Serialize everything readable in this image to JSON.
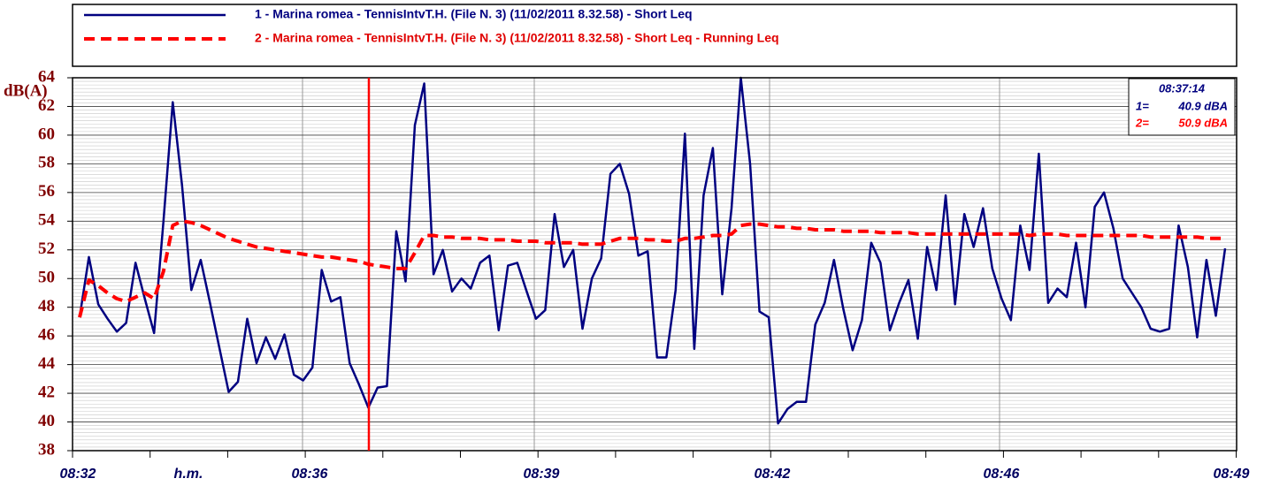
{
  "chart_data": {
    "type": "line",
    "y_label": "dB(A)",
    "ylim": [
      38,
      64
    ],
    "yticks": [
      38,
      40,
      42,
      44,
      46,
      48,
      50,
      52,
      54,
      56,
      58,
      60,
      62,
      64
    ],
    "x_tick_labels": [
      "08:32",
      "h.m.",
      "08:36",
      "08:39",
      "08:42",
      "08:46",
      "08:49"
    ],
    "grid": true,
    "series": [
      {
        "name": "1 - Marina romea - TennisIntvT.H. (File N. 3) (11/02/2011 8.32.58) - Short Leq",
        "color": "#000080",
        "style": "solid",
        "values": [
          47.3,
          51.5,
          48.2,
          47.2,
          46.3,
          46.9,
          51.1,
          48.6,
          46.2,
          54,
          62.3,
          56.5,
          49.2,
          51.3,
          48.3,
          45.2,
          42.1,
          42.8,
          47.2,
          44.1,
          45.9,
          44.4,
          46.1,
          43.3,
          42.9,
          43.8,
          50.6,
          48.4,
          48.7,
          44.1,
          42.6,
          41,
          42.4,
          42.5,
          53.3,
          49.8,
          60.7,
          63.6,
          50.3,
          52,
          49.1,
          50,
          49.3,
          51.1,
          51.6,
          46.4,
          50.9,
          51.1,
          49.1,
          47.2,
          47.8,
          54.5,
          50.8,
          52,
          46.5,
          50,
          51.4,
          57.3,
          58,
          55.9,
          51.6,
          51.9,
          44.5,
          44.5,
          49.2,
          60.1,
          45.1,
          55.8,
          59.1,
          48.9,
          54.9,
          64,
          58,
          47.7,
          47.3,
          39.9,
          40.9,
          41.4,
          41.4,
          46.8,
          48.3,
          51.3,
          47.9,
          45,
          47.1,
          52.5,
          51.1,
          46.4,
          48.3,
          49.9,
          45.8,
          52.2,
          49.2,
          55.8,
          48.2,
          54.5,
          52.2,
          54.9,
          50.7,
          48.6,
          47.1,
          53.7,
          50.6,
          58.7,
          48.3,
          49.3,
          48.7,
          52.5,
          48,
          55,
          56,
          53.5,
          50,
          49,
          48,
          46.5,
          46.3,
          46.5,
          53.7,
          50.8,
          45.9,
          51.3,
          47.4,
          52.1
        ]
      },
      {
        "name": "2 - Marina romea - TennisIntvT.H. (File N. 3) (11/02/2011 8.32.58) - Short Leq - Running Leq",
        "color": "#ff0000",
        "style": "dashed",
        "values": [
          47.3,
          49.9,
          49.5,
          49,
          48.6,
          48.4,
          48.7,
          49,
          48.6,
          50.5,
          53.7,
          54,
          53.9,
          53.7,
          53.4,
          53.1,
          52.8,
          52.6,
          52.4,
          52.2,
          52.1,
          52,
          51.9,
          51.8,
          51.7,
          51.6,
          51.5,
          51.5,
          51.4,
          51.3,
          51.2,
          51,
          50.9,
          50.8,
          50.7,
          50.7,
          51.8,
          53,
          53,
          52.9,
          52.9,
          52.8,
          52.8,
          52.8,
          52.7,
          52.7,
          52.7,
          52.6,
          52.6,
          52.6,
          52.5,
          52.5,
          52.5,
          52.5,
          52.4,
          52.4,
          52.4,
          52.6,
          52.8,
          52.8,
          52.8,
          52.7,
          52.7,
          52.6,
          52.6,
          52.8,
          52.8,
          52.9,
          53,
          53,
          53.1,
          53.7,
          53.8,
          53.8,
          53.7,
          53.6,
          53.6,
          53.5,
          53.5,
          53.4,
          53.4,
          53.4,
          53.3,
          53.3,
          53.3,
          53.3,
          53.2,
          53.2,
          53.2,
          53.2,
          53.1,
          53.1,
          53.1,
          53.1,
          53.1,
          53.1,
          53.1,
          53.1,
          53.1,
          53.1,
          53.1,
          53.1,
          53,
          53.1,
          53.1,
          53.1,
          53,
          53,
          53,
          53,
          53,
          53,
          53,
          53,
          53,
          52.9,
          52.9,
          52.9,
          52.9,
          52.9,
          52.9,
          52.8,
          52.8,
          52.8
        ]
      }
    ],
    "cursor": {
      "time": "08:37:14",
      "labels": [
        "1=",
        "2="
      ],
      "readings": [
        "40.9 dBA",
        "50.9 dBA"
      ]
    }
  }
}
